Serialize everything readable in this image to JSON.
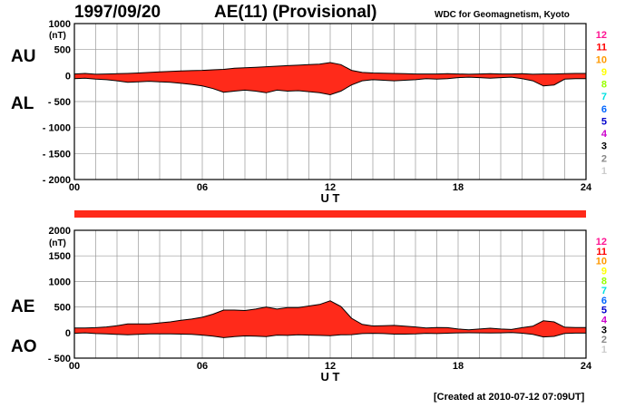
{
  "header": {
    "date": "1997/09/20",
    "title": "AE(11) (Provisional)",
    "source": "WDC for Geomagnetism, Kyoto"
  },
  "footer": {
    "created": "[Created at 2010-07-12 07:09UT]"
  },
  "legend": {
    "labels": [
      "12",
      "11",
      "10",
      "9",
      "8",
      "7",
      "6",
      "5",
      "4",
      "3",
      "2",
      "1"
    ],
    "colors": [
      "#ff1493",
      "#ff0000",
      "#ff9900",
      "#ffff00",
      "#99ff00",
      "#00e0e0",
      "#0066ff",
      "#0000cc",
      "#cc00cc",
      "#000000",
      "#888888",
      "#cccccc"
    ]
  },
  "colors": {
    "fill": "#ff2a1a",
    "outline": "#000000",
    "grid": "#999999",
    "coverage_bar": "#ff2a1a"
  },
  "chart_data": [
    {
      "type": "area",
      "unit_label": "(nT)",
      "upper_series_label": "AU",
      "lower_series_label": "AL",
      "xlabel": "U T",
      "xlim": [
        0,
        24
      ],
      "ylim": [
        -2000,
        1000
      ],
      "y_ticks": [
        "1000",
        "500",
        "0",
        "- 500",
        "- 1000",
        "- 1500",
        "- 2000"
      ],
      "y_tick_values": [
        1000,
        500,
        0,
        -500,
        -1000,
        -1500,
        -2000
      ],
      "x_ticks": [
        "00",
        "06",
        "12",
        "18",
        "24"
      ],
      "x_tick_values": [
        0,
        6,
        12,
        18,
        24
      ],
      "grid": true,
      "series": [
        {
          "name": "AU",
          "x": [
            0,
            0.5,
            1,
            1.5,
            2,
            2.5,
            3,
            3.5,
            4,
            4.5,
            5,
            5.5,
            6,
            6.5,
            7,
            7.5,
            8,
            8.5,
            9,
            9.5,
            10,
            10.5,
            11,
            11.5,
            12,
            12.5,
            13,
            13.5,
            14,
            14.5,
            15,
            15.5,
            16,
            16.5,
            17,
            17.5,
            18,
            18.5,
            19,
            19.5,
            20,
            20.5,
            21,
            21.5,
            22,
            22.5,
            23,
            23.5,
            24
          ],
          "values": [
            30,
            40,
            25,
            30,
            35,
            40,
            50,
            60,
            70,
            80,
            90,
            95,
            100,
            110,
            120,
            140,
            150,
            160,
            170,
            180,
            190,
            200,
            210,
            220,
            250,
            210,
            100,
            60,
            50,
            45,
            40,
            35,
            30,
            30,
            30,
            35,
            30,
            25,
            30,
            35,
            30,
            30,
            35,
            25,
            30,
            30,
            35,
            40,
            40
          ]
        },
        {
          "name": "AL",
          "x": [
            0,
            0.5,
            1,
            1.5,
            2,
            2.5,
            3,
            3.5,
            4,
            4.5,
            5,
            5.5,
            6,
            6.5,
            7,
            7.5,
            8,
            8.5,
            9,
            9.5,
            10,
            10.5,
            11,
            11.5,
            12,
            12.5,
            13,
            13.5,
            14,
            14.5,
            15,
            15.5,
            16,
            16.5,
            17,
            17.5,
            18,
            18.5,
            19,
            19.5,
            20,
            20.5,
            21,
            21.5,
            22,
            22.5,
            23,
            23.5,
            24
          ],
          "values": [
            -60,
            -50,
            -70,
            -80,
            -100,
            -130,
            -120,
            -110,
            -120,
            -130,
            -150,
            -170,
            -200,
            -250,
            -320,
            -300,
            -280,
            -300,
            -330,
            -280,
            -300,
            -290,
            -310,
            -330,
            -370,
            -300,
            -180,
            -100,
            -80,
            -90,
            -100,
            -90,
            -80,
            -60,
            -70,
            -60,
            -40,
            -30,
            -40,
            -50,
            -40,
            -30,
            -60,
            -100,
            -200,
            -180,
            -70,
            -60,
            -60
          ]
        }
      ]
    },
    {
      "type": "area",
      "unit_label": "(nT)",
      "upper_series_label": "AE",
      "lower_series_label": "AO",
      "xlabel": "U T",
      "xlim": [
        0,
        24
      ],
      "ylim": [
        -500,
        2000
      ],
      "y_ticks": [
        "2000",
        "1500",
        "1000",
        "500",
        "0",
        "- 500"
      ],
      "y_tick_values": [
        2000,
        1500,
        1000,
        500,
        0,
        -500
      ],
      "x_ticks": [
        "00",
        "06",
        "12",
        "18",
        "24"
      ],
      "x_tick_values": [
        0,
        6,
        12,
        18,
        24
      ],
      "grid": true,
      "series": [
        {
          "name": "AE",
          "x": [
            0,
            0.5,
            1,
            1.5,
            2,
            2.5,
            3,
            3.5,
            4,
            4.5,
            5,
            5.5,
            6,
            6.5,
            7,
            7.5,
            8,
            8.5,
            9,
            9.5,
            10,
            10.5,
            11,
            11.5,
            12,
            12.5,
            13,
            13.5,
            14,
            14.5,
            15,
            15.5,
            16,
            16.5,
            17,
            17.5,
            18,
            18.5,
            19,
            19.5,
            20,
            20.5,
            21,
            21.5,
            22,
            22.5,
            23,
            23.5,
            24
          ],
          "values": [
            90,
            90,
            95,
            110,
            135,
            170,
            170,
            170,
            190,
            210,
            240,
            265,
            300,
            360,
            440,
            440,
            430,
            460,
            500,
            460,
            490,
            490,
            520,
            550,
            620,
            510,
            280,
            160,
            130,
            135,
            140,
            125,
            110,
            90,
            100,
            95,
            70,
            55,
            70,
            85,
            70,
            60,
            95,
            125,
            230,
            210,
            105,
            100,
            100
          ]
        },
        {
          "name": "AO",
          "x": [
            0,
            0.5,
            1,
            1.5,
            2,
            2.5,
            3,
            3.5,
            4,
            4.5,
            5,
            5.5,
            6,
            6.5,
            7,
            7.5,
            8,
            8.5,
            9,
            9.5,
            10,
            10.5,
            11,
            11.5,
            12,
            12.5,
            13,
            13.5,
            14,
            14.5,
            15,
            15.5,
            16,
            16.5,
            17,
            17.5,
            18,
            18.5,
            19,
            19.5,
            20,
            20.5,
            21,
            21.5,
            22,
            22.5,
            23,
            23.5,
            24
          ],
          "values": [
            -15,
            -5,
            -20,
            -25,
            -35,
            -45,
            -35,
            -25,
            -25,
            -25,
            -30,
            -35,
            -50,
            -70,
            -100,
            -80,
            -65,
            -70,
            -80,
            -50,
            -55,
            -45,
            -50,
            -55,
            -60,
            -45,
            -40,
            -20,
            -15,
            -20,
            -30,
            -30,
            -25,
            -15,
            -20,
            -12,
            -5,
            -3,
            -5,
            -8,
            -5,
            0,
            -12,
            -35,
            -85,
            -75,
            -18,
            -10,
            -10
          ]
        }
      ]
    }
  ]
}
